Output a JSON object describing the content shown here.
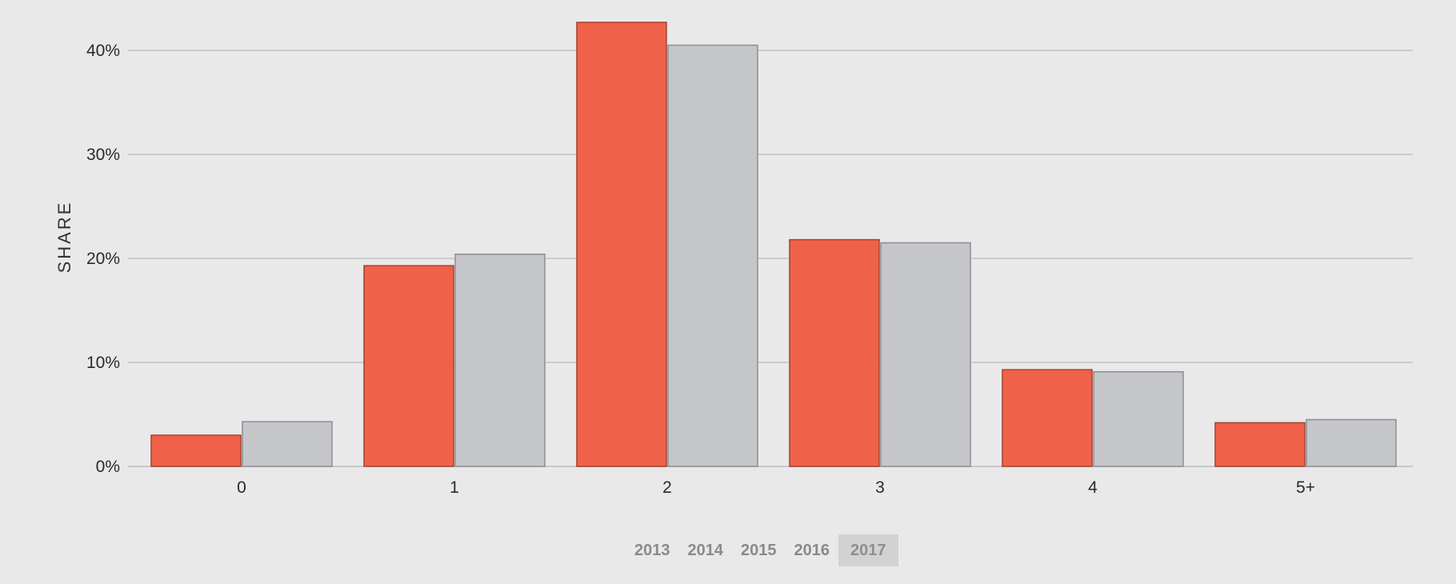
{
  "chart_data": {
    "type": "bar",
    "categories": [
      "0",
      "1",
      "2",
      "3",
      "4",
      "5+"
    ],
    "series": [
      {
        "values": [
          3.0,
          19.3,
          42.7,
          21.8,
          9.3,
          4.2
        ],
        "color": "#ef6249"
      },
      {
        "values": [
          4.3,
          20.4,
          40.5,
          21.5,
          9.1,
          4.5
        ],
        "color": "#c5c6c9"
      }
    ],
    "ylabel": "SHARE",
    "xlabel": "",
    "ylim": [
      0,
      43
    ],
    "yticks": [
      0,
      10,
      20,
      30,
      40
    ],
    "ytick_labels": [
      "0%",
      "10%",
      "20%",
      "30%",
      "40%"
    ],
    "grid": true
  },
  "year_selector": {
    "years": [
      "2013",
      "2014",
      "2015",
      "2016",
      "2017"
    ],
    "selected": "2017"
  }
}
